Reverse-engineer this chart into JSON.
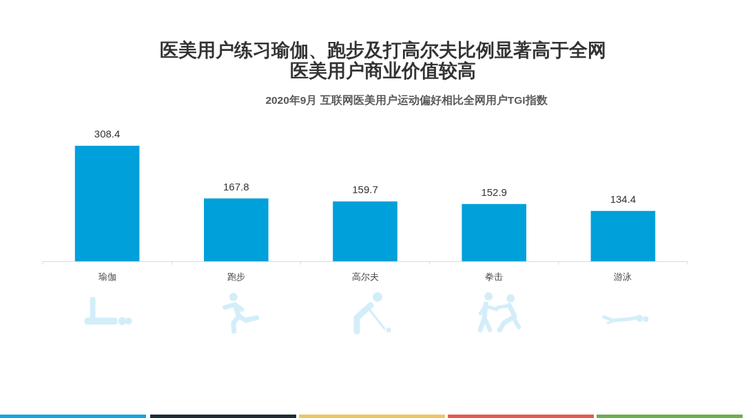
{
  "chart_data": {
    "type": "bar",
    "title": "医美用户练习瑜伽、跑步及打高尔夫比例显著高于全网医美用户商业价值较高",
    "subtitle": "2020年9月 互联网医美用户运动偏好相比全网用户TGI指数",
    "categories": [
      "瑜伽",
      "跑步",
      "高尔夫",
      "拳击",
      "游泳"
    ],
    "values": [
      308.4,
      167.8,
      159.7,
      152.9,
      134.4
    ],
    "color": "#00a0da",
    "data_labels": true
  }
}
